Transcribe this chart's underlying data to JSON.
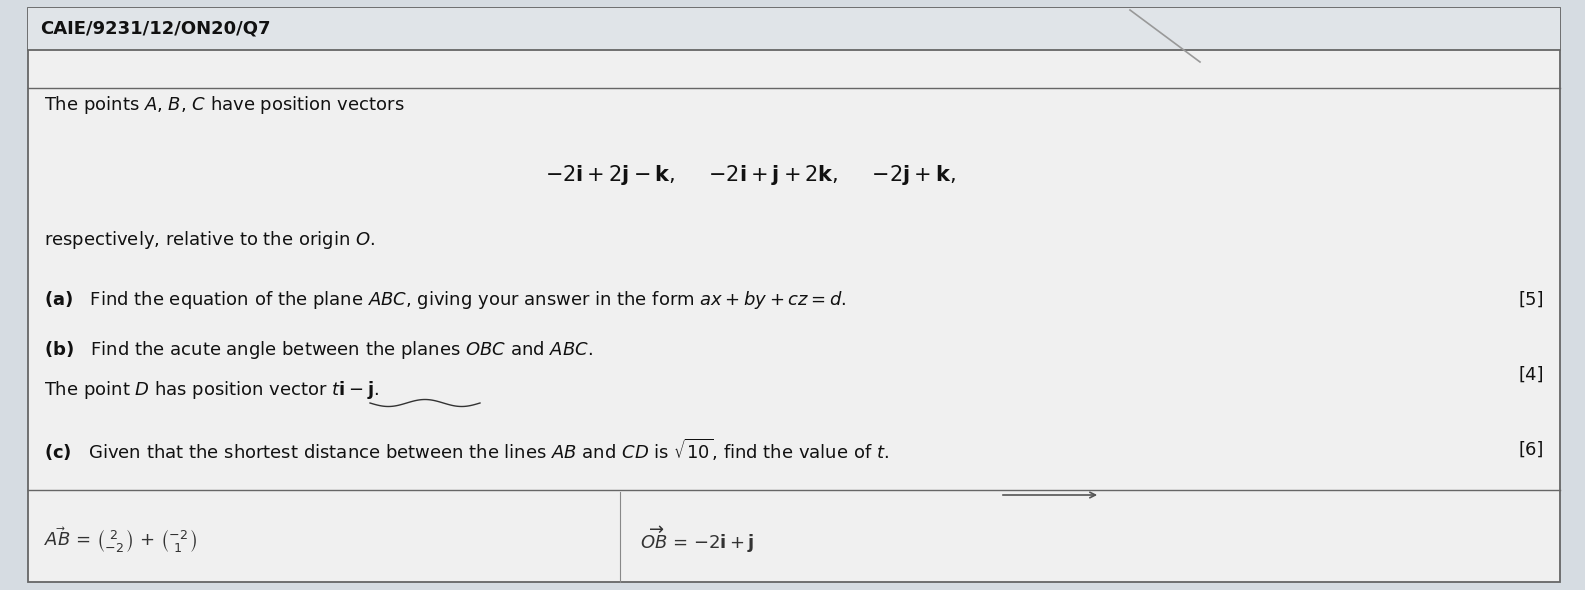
{
  "bg_color": "#d6dce2",
  "box_color": "#f0f0f0",
  "header": "CAIE/9231/12/ON20/Q7",
  "font_size_header": 13,
  "font_size_body": 13,
  "font_size_vectors": 15,
  "font_size_marks": 13,
  "mark_a": "[5]",
  "mark_b": "[4]",
  "mark_c": "[6]"
}
